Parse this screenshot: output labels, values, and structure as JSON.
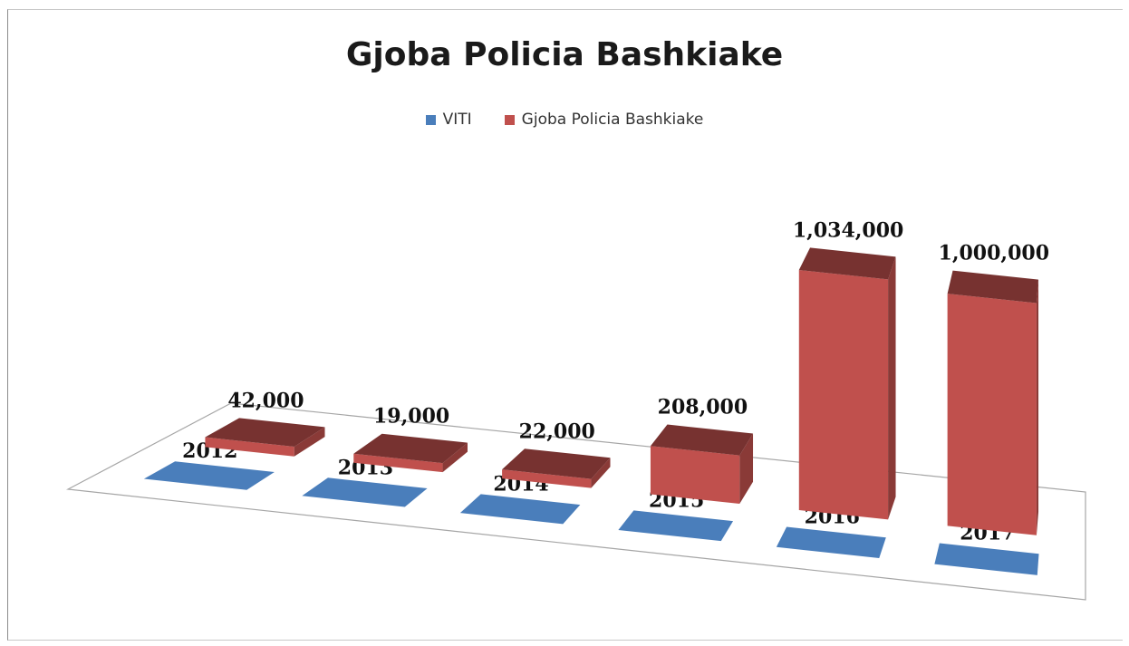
{
  "chart_data": {
    "type": "bar",
    "title": "Gjoba Policia Bashkiake",
    "legend": {
      "placement": "top",
      "entries": [
        "VITI",
        "Gjoba Policia Bashkiake"
      ]
    },
    "categories": [
      "2012",
      "2013",
      "2014",
      "2015",
      "2016",
      "2017"
    ],
    "series": [
      {
        "name": "VITI",
        "values": [
          2012,
          2013,
          2014,
          2015,
          2016,
          2017
        ],
        "labels": [
          "2012",
          "2013",
          "2014",
          "2015",
          "2016",
          "2017"
        ],
        "color": "#4a7ebb"
      },
      {
        "name": "Gjoba Policia Bashkiake",
        "values": [
          42000,
          19000,
          22000,
          208000,
          1034000,
          1000000
        ],
        "labels": [
          "42,000",
          "19,000",
          "22,000",
          "208,000",
          "1,034,000",
          "1,000,000"
        ],
        "color": "#c0504d"
      }
    ],
    "ylim": [
      0,
      1034000
    ],
    "grid": false,
    "perspective": "3d"
  }
}
